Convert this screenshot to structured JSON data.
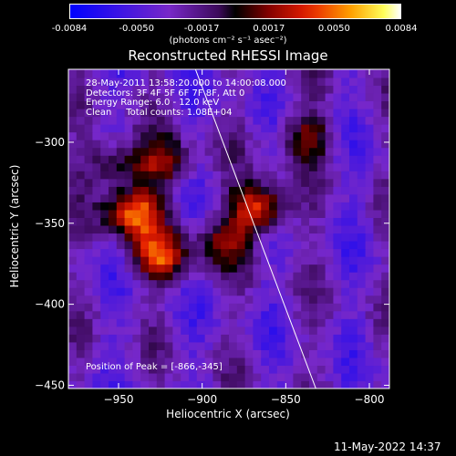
{
  "colorbar": {
    "ticks": [
      "-0.0084",
      "-0.0050",
      "-0.0017",
      "0.0017",
      "0.0050",
      "0.0084"
    ],
    "tick_values": [
      -0.0084,
      -0.005,
      -0.0017,
      0.0017,
      0.005,
      0.0084
    ],
    "range": [
      -0.0084,
      0.0084
    ],
    "units": "(photons cm⁻² s⁻¹ asec⁻²)"
  },
  "chart_data": {
    "type": "heatmap",
    "title": "Reconstructed RHESSI Image",
    "xlabel": "Heliocentric X (arcsec)",
    "ylabel": "Heliocentric Y (arcsec)",
    "xlim": [
      -980,
      -788
    ],
    "ylim": [
      -452,
      -255
    ],
    "x_ticks": [
      -950,
      -900,
      -850,
      -800
    ],
    "y_ticks": [
      -300,
      -350,
      -400,
      -450
    ],
    "x_tick_labels": [
      "−950",
      "−900",
      "−850",
      "−800"
    ],
    "y_tick_labels": [
      "−300",
      "−350",
      "−400",
      "−450"
    ],
    "peak_position": [
      -866,
      -345
    ],
    "sources": [
      {
        "x": -944,
        "y": -346,
        "amplitude": 0.0084
      },
      {
        "x": -868,
        "y": -343,
        "amplitude": 0.0083
      },
      {
        "x": -927,
        "y": -373,
        "amplitude": 0.0068
      },
      {
        "x": -955,
        "y": -316,
        "amplitude": 0.0049
      },
      {
        "x": -925,
        "y": -315,
        "amplitude": 0.0049
      },
      {
        "x": -840,
        "y": -298,
        "amplitude": 0.0045
      },
      {
        "x": -890,
        "y": -364,
        "amplitude": 0.004
      }
    ],
    "limb_line": [
      [
        -904,
        -255
      ],
      [
        -832,
        -452
      ]
    ],
    "annotations": {
      "time": "28-May-2011 13:58:20.000 to 14:00:08.000",
      "detectors": "Detectors: 3F 4F 5F 6F 7F 8F, Att 0",
      "energy": "Energy Range: 6.0 - 12.0 keV",
      "clean": "Clean     Total counts: 1.08E+04",
      "peak": "Position of Peak = [-866,-345]"
    }
  },
  "footer": {
    "date": "11-May-2022 14:37"
  }
}
